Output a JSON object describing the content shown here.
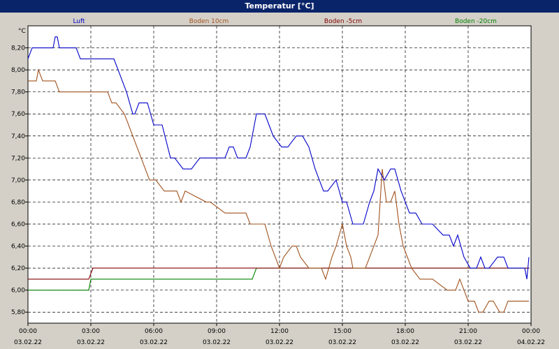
{
  "window": {
    "title": "Temperatur [°C]"
  },
  "chart_data": {
    "type": "line",
    "title": "Temperatur [°C]",
    "ylabel": "°C",
    "ylim": [
      5.7,
      8.4
    ],
    "xlim_hours": [
      0,
      24
    ],
    "grid": true,
    "legend_position": "top",
    "y_ticks": [
      "8,20",
      "8,00",
      "7,80",
      "7,60",
      "7,40",
      "7,20",
      "7,00",
      "6,80",
      "6,60",
      "6,40",
      "6,20",
      "6,00",
      "5,80"
    ],
    "y_tick_values": [
      8.2,
      8.0,
      7.8,
      7.6,
      7.4,
      7.2,
      7.0,
      6.8,
      6.6,
      6.4,
      6.2,
      6.0,
      5.8
    ],
    "x_ticks": [
      {
        "time": "00:00",
        "date": "03.02.22",
        "hour": 0
      },
      {
        "time": "03:00",
        "date": "03.02.22",
        "hour": 3
      },
      {
        "time": "06:00",
        "date": "03.02.22",
        "hour": 6
      },
      {
        "time": "09:00",
        "date": "03.02.22",
        "hour": 9
      },
      {
        "time": "12:00",
        "date": "03.02.22",
        "hour": 12
      },
      {
        "time": "15:00",
        "date": "03.02.22",
        "hour": 15
      },
      {
        "time": "18:00",
        "date": "03.02.22",
        "hour": 18
      },
      {
        "time": "21:00",
        "date": "03.02.22",
        "hour": 21
      },
      {
        "time": "00:00",
        "date": "04.02.22",
        "hour": 24
      }
    ],
    "series": [
      {
        "name": "Luft",
        "color": "#0000c8",
        "x": [
          0,
          0.2,
          1.2,
          1.3,
          1.4,
          1.5,
          2.3,
          2.5,
          4.1,
          4.3,
          4.7,
          5,
          5.1,
          5.3,
          5.7,
          6,
          6.4,
          6.8,
          7,
          7.4,
          7.8,
          8.2,
          8.6,
          9.4,
          9.6,
          9.8,
          10.0,
          10.4,
          10.6,
          10.9,
          11.3,
          11.5,
          11.7,
          12.1,
          12.4,
          12.8,
          13.1,
          13.4,
          13.7,
          14.1,
          14.3,
          14.7,
          15.0,
          15.2,
          15.5,
          16.0,
          16.3,
          16.5,
          16.7,
          17.0,
          17.3,
          17.5,
          17.8,
          18.2,
          18.5,
          18.8,
          19.3,
          19.8,
          20.1,
          20.3,
          20.5,
          20.8,
          21.1,
          21.4,
          21.6,
          21.8,
          22.0,
          22.4,
          22.7,
          22.9,
          23.2,
          23.4,
          23.7,
          23.8,
          23.9
        ],
        "values": [
          8.1,
          8.2,
          8.2,
          8.3,
          8.3,
          8.2,
          8.2,
          8.1,
          8.1,
          8.0,
          7.8,
          7.6,
          7.6,
          7.7,
          7.7,
          7.5,
          7.5,
          7.2,
          7.2,
          7.1,
          7.1,
          7.2,
          7.2,
          7.2,
          7.3,
          7.3,
          7.2,
          7.2,
          7.3,
          7.6,
          7.6,
          7.5,
          7.4,
          7.3,
          7.3,
          7.4,
          7.4,
          7.3,
          7.1,
          6.9,
          6.9,
          7.0,
          6.8,
          6.8,
          6.6,
          6.6,
          6.8,
          6.9,
          7.1,
          7.0,
          7.1,
          7.1,
          6.9,
          6.7,
          6.7,
          6.6,
          6.6,
          6.5,
          6.5,
          6.4,
          6.5,
          6.3,
          6.2,
          6.2,
          6.3,
          6.2,
          6.2,
          6.3,
          6.3,
          6.2,
          6.2,
          6.2,
          6.2,
          6.1,
          6.3
        ]
      },
      {
        "name": "Boden 10cm",
        "color": "#a0521e",
        "x": [
          0,
          0.4,
          0.5,
          0.7,
          1.3,
          1.5,
          2.8,
          3.0,
          3.8,
          4.0,
          4.2,
          4.6,
          5.0,
          5.4,
          5.8,
          6.1,
          6.5,
          6.8,
          7.1,
          7.3,
          7.5,
          8.5,
          8.7,
          9.4,
          10.4,
          10.6,
          11.3,
          11.6,
          11.8,
          12.0,
          12.2,
          12.6,
          12.8,
          13.0,
          13.4,
          13.7,
          14.0,
          14.2,
          14.5,
          14.7,
          15.0,
          15.2,
          15.4,
          15.5,
          15.7,
          15.9,
          16.1,
          16.3,
          16.5,
          16.7,
          16.9,
          17.1,
          17.3,
          17.5,
          17.7,
          17.9,
          18.3,
          18.7,
          18.9,
          19.3,
          20.0,
          20.2,
          20.4,
          20.6,
          20.8,
          21.0,
          21.3,
          21.5,
          21.7,
          22.0,
          22.2,
          22.5,
          22.7,
          22.9,
          23.9
        ],
        "values": [
          7.9,
          7.9,
          8.0,
          7.9,
          7.9,
          7.8,
          7.8,
          7.8,
          7.8,
          7.7,
          7.7,
          7.6,
          7.4,
          7.2,
          7.0,
          7.0,
          6.9,
          6.9,
          6.9,
          6.8,
          6.9,
          6.8,
          6.8,
          6.7,
          6.7,
          6.6,
          6.6,
          6.4,
          6.3,
          6.2,
          6.3,
          6.4,
          6.4,
          6.3,
          6.2,
          6.2,
          6.2,
          6.1,
          6.3,
          6.4,
          6.6,
          6.4,
          6.3,
          6.2,
          6.2,
          6.2,
          6.2,
          6.3,
          6.4,
          6.5,
          7.1,
          6.8,
          6.8,
          6.9,
          6.6,
          6.4,
          6.2,
          6.1,
          6.1,
          6.1,
          6.0,
          6.0,
          6.0,
          6.1,
          6.0,
          5.9,
          5.9,
          5.8,
          5.8,
          5.9,
          5.9,
          5.8,
          5.8,
          5.9,
          5.9
        ]
      },
      {
        "name": "Boden -5cm",
        "color": "#800000",
        "x": [
          0,
          2.9,
          3.1,
          23.9
        ],
        "values": [
          6.1,
          6.1,
          6.2,
          6.2
        ]
      },
      {
        "name": "Boden -20cm",
        "color": "#008000",
        "x": [
          0,
          2.9,
          3.0,
          10.7,
          10.9,
          23.9
        ],
        "values": [
          6.0,
          6.0,
          6.1,
          6.1,
          6.2,
          6.2
        ]
      }
    ]
  }
}
